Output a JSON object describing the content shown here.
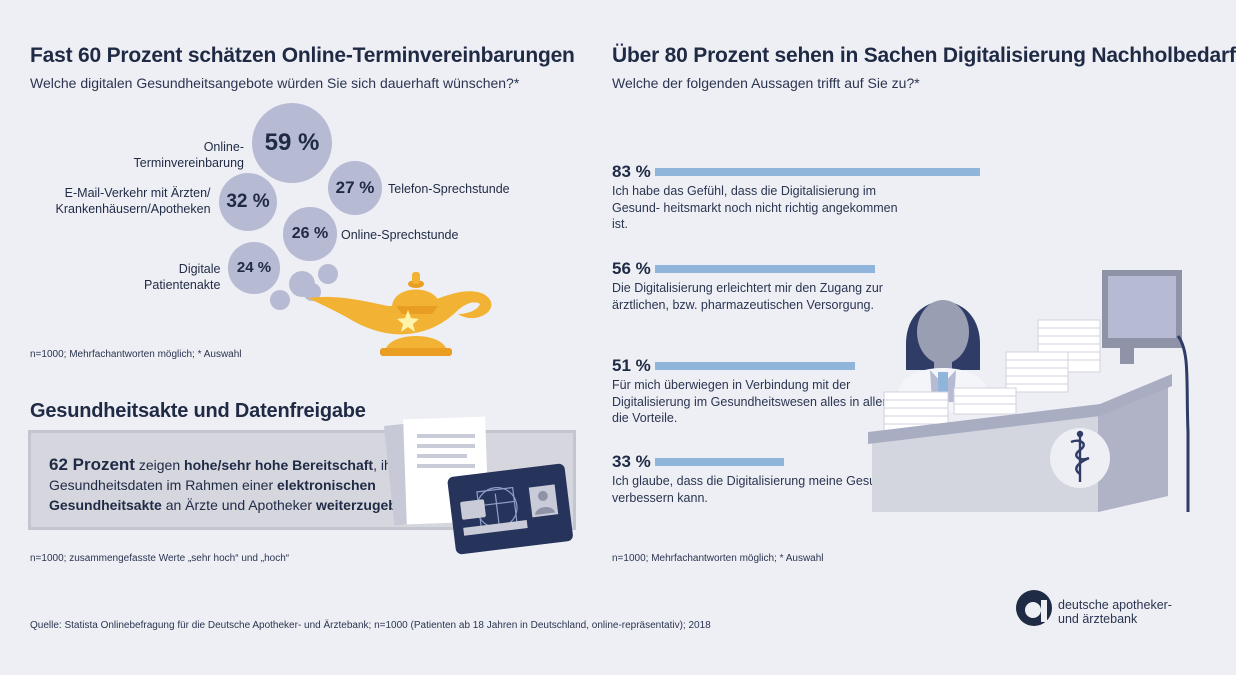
{
  "left": {
    "title": "Fast 60 Prozent schätzen Online-Terminvereinbarungen",
    "subtitle": "Welche digitalen Gesundheitsangebote würden Sie sich dauerhaft wünschen?*",
    "note": "n=1000; Mehrfachantworten möglich; * Auswahl"
  },
  "chart_data": [
    {
      "type": "bubble",
      "title": "Fast 60 Prozent schätzen Online-Terminvereinbarungen",
      "subtitle": "Welche digitalen Gesundheitsangebote würden Sie sich dauerhaft wünschen?*",
      "unit": "%",
      "categories": [
        "Online-Terminvereinbarung",
        "E-Mail-Verkehr mit Ärzten/ Krankenhäusern/Apotheken",
        "Telefon-Sprechstunde",
        "Online-Sprechstunde",
        "Digitale Patientenakte"
      ],
      "values": [
        59,
        32,
        27,
        26,
        24
      ],
      "labels": [
        "59 %",
        "32 %",
        "27 %",
        "26 %",
        "24 %"
      ]
    },
    {
      "type": "bar",
      "title": "Über 80 Prozent sehen in Sachen Digitalisierung Nachholbedarf",
      "subtitle": "Welche der folgenden Aussagen trifft auf Sie zu?*",
      "unit": "%",
      "categories": [
        "Ich habe das Gefühl, dass die Digitalisierung im Gesund- heitsmarkt noch nicht richtig angekommen ist.",
        "Die Digitalisierung erleichtert mir den Zugang zur ärztlichen, bzw. pharmazeutischen Versorgung.",
        "Für mich überwiegen in Verbindung mit der Digitalisierung im Gesundheitswesen alles in allem die Vorteile.",
        "Ich glaube, dass die Digitalisierung meine Gesundheit verbessern kann."
      ],
      "values": [
        83,
        56,
        51,
        33
      ],
      "labels": [
        "83 %",
        "56 %",
        "51 %",
        "33 %"
      ],
      "ylim": [
        0,
        100
      ],
      "color": "#8fb5da"
    }
  ],
  "right": {
    "title": "Über 80 Prozent sehen in Sachen Digitalisierung Nachholbedarf",
    "subtitle": "Welche der folgenden Aussagen trifft auf Sie zu?*",
    "note": "n=1000; Mehrfachantworten möglich; * Auswahl"
  },
  "akte": {
    "title": "Gesundheitsakte und Datenfreigabe",
    "t1": "62 Prozent",
    "t2": " zeigen ",
    "t3": "hohe/sehr hohe Bereitschaft",
    "t4": ", ihre Gesundheitsdaten im Rahmen einer ",
    "t5": "elektronischen Gesundheitsakte",
    "t6": " an Ärzte und Apotheker ",
    "t7": "weiterzugeben.",
    "note": "n=1000; zusammengefasste Werte „sehr hoch“ und „hoch“"
  },
  "source": "Quelle: Statista Onlinebefragung für die Deutsche Apotheker- und Ärztebank; n=1000 (Patienten ab 18 Jahren in Deutschland, online-repräsentativ); 2018",
  "logo": {
    "line1": "deutsche apotheker-",
    "line2": "und ärztebank"
  },
  "colors": {
    "background": "#eeeff5",
    "bubble": "#b7bad3",
    "bar": "#8fb5da",
    "navy": "#1f2a44",
    "lamp": "#f2b233"
  },
  "icons": [
    "genie-lamp-icon",
    "health-card-icon",
    "pharmacist-illustration-icon",
    "caduceus-icon",
    "bank-logo-icon"
  ]
}
